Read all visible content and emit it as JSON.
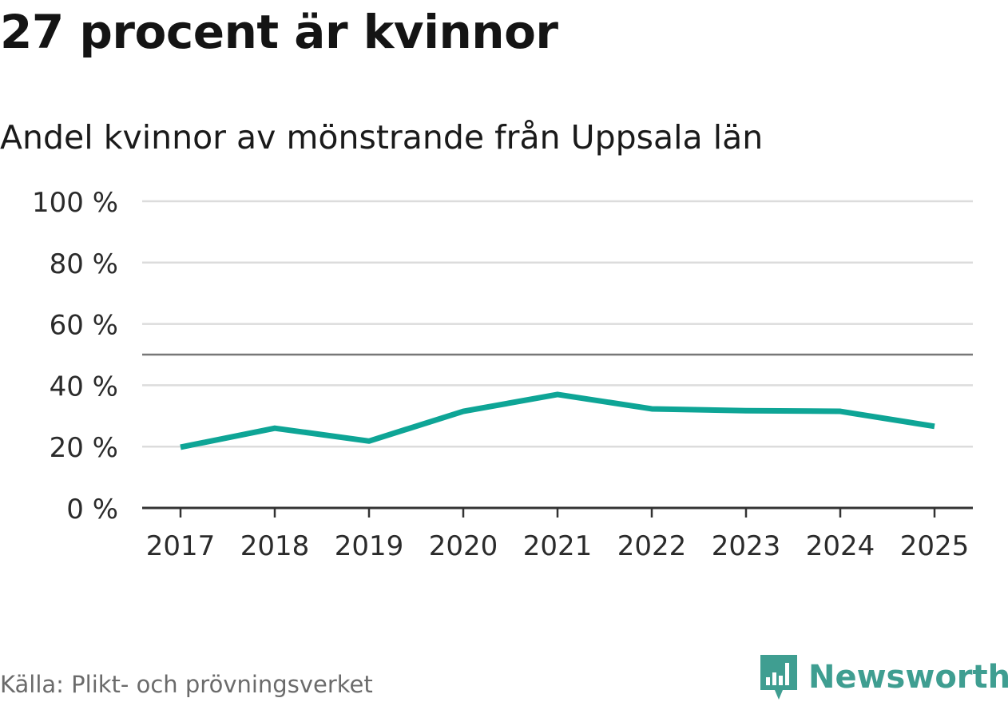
{
  "title": "27 procent är kvinnor",
  "subtitle": "Andel kvinnor av mönstrande från Uppsala län",
  "source": "Källa: Plikt- och prövningsverket",
  "brand": {
    "name": "Newsworthy",
    "icon": "newsworthy-logo-icon"
  },
  "colors": {
    "line": "#0ea596",
    "grid": "#dcdcdc",
    "reference": "#777777",
    "axis": "#333333",
    "brand": "#3f9e91"
  },
  "chart_data": {
    "type": "line",
    "title": "27 procent är kvinnor",
    "subtitle": "Andel kvinnor av mönstrande från Uppsala län",
    "xlabel": "",
    "ylabel": "",
    "categories": [
      "2017",
      "2018",
      "2019",
      "2020",
      "2021",
      "2022",
      "2023",
      "2024",
      "2025"
    ],
    "series": [
      {
        "name": "Andel kvinnor",
        "values": [
          19.8,
          26.0,
          21.8,
          31.5,
          37.0,
          32.3,
          31.7,
          31.5,
          26.6
        ]
      }
    ],
    "ylim": [
      0,
      100
    ],
    "yticks": [
      0,
      20,
      40,
      60,
      80,
      100
    ],
    "ytick_labels": [
      "0 %",
      "20 %",
      "40 %",
      "60 %",
      "80 %",
      "100 %"
    ],
    "reference_line": 50,
    "grid": true
  }
}
